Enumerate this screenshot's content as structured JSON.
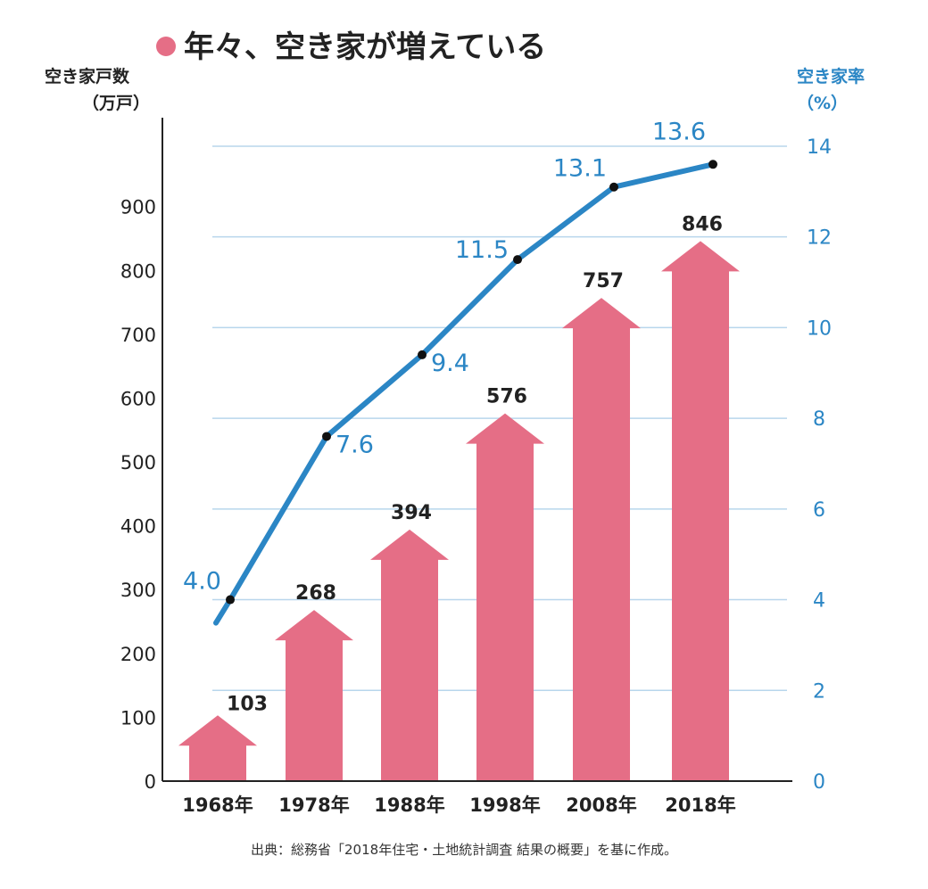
{
  "chart_data": {
    "type": "bar+line",
    "title": "年々、空き家が増えている",
    "title_bullet_color": "#e56e86",
    "categories": [
      "1968年",
      "1978年",
      "1988年",
      "1998年",
      "2008年",
      "2018年"
    ],
    "series": [
      {
        "name": "空き家戸数",
        "type": "bar",
        "axis": "left",
        "values": [
          103,
          268,
          394,
          576,
          757,
          846
        ],
        "color": "#e56e86"
      },
      {
        "name": "空き家率",
        "type": "line",
        "axis": "right",
        "values": [
          4.0,
          7.6,
          9.4,
          11.5,
          13.1,
          13.6
        ],
        "labels": [
          "4.0",
          "7.6",
          "9.4",
          "11.5",
          "13.1",
          "13.6"
        ],
        "color": "#2b86c5"
      }
    ],
    "y_left": {
      "label_line1": "空き家戸数",
      "label_line2": "（万戸）",
      "ylim": [
        0,
        1000
      ],
      "ticks": [
        0,
        100,
        200,
        300,
        400,
        500,
        600,
        700,
        800,
        900
      ]
    },
    "y_right": {
      "label_line1": "空き家率",
      "label_line2": "（%）",
      "ylim": [
        0,
        14
      ],
      "ticks": [
        0,
        2,
        4,
        6,
        8,
        10,
        12,
        14
      ]
    },
    "grid": true,
    "grid_color": "#b8d6ec",
    "source": "出典：総務省「2018年住宅・土地統計調査 結果の概要」を基に作成。"
  }
}
